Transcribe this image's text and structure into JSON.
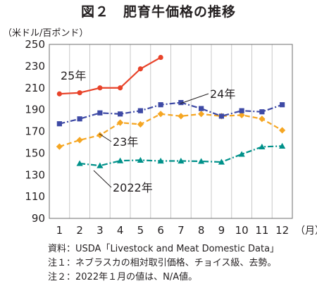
{
  "figure_title": "図２　肥育牛価格の推移",
  "notes": [
    "資料：USDA「Livestock and Meat Domestic Data」",
    "注１：ネブラスカの相対取引価格、チョイス級、去勢。",
    "注２：2022年１月の値は、N/A値。"
  ],
  "chart_data": {
    "type": "line",
    "title": "図２　肥育牛価格の推移",
    "ylabel": "（米ドル/百ポンド）",
    "xlabel": "（月）",
    "ylim": [
      90,
      250
    ],
    "y_ticks": [
      90,
      110,
      130,
      150,
      170,
      190,
      210,
      230,
      250
    ],
    "x": [
      "1",
      "2",
      "3",
      "4",
      "5",
      "6",
      "7",
      "8",
      "9",
      "10",
      "11",
      "12"
    ],
    "grid": "vertical",
    "series": [
      {
        "name": "2022年",
        "color": "#00918a",
        "marker": "triangle",
        "dash": "dash-dot",
        "values": [
          null,
          140.5,
          138.5,
          143.0,
          143.5,
          142.8,
          142.8,
          142.5,
          141.8,
          149.0,
          155.8,
          156.5
        ]
      },
      {
        "name": "23年",
        "color": "#f5a623",
        "marker": "diamond",
        "dash": "dash",
        "values": [
          156.0,
          162.0,
          166.5,
          178.0,
          176.5,
          186.0,
          184.0,
          186.0,
          184.0,
          185.0,
          181.5,
          171.0
        ]
      },
      {
        "name": "24年",
        "color": "#3e4aa5",
        "marker": "square",
        "dash": "dash-dot",
        "values": [
          177.0,
          181.5,
          187.0,
          186.0,
          189.0,
          194.5,
          196.5,
          191.0,
          184.0,
          189.0,
          188.0,
          194.5
        ]
      },
      {
        "name": "25年",
        "color": "#e8432a",
        "marker": "circle",
        "dash": "solid",
        "values": [
          204.5,
          205.5,
          210.0,
          210.0,
          227.5,
          238.0,
          null,
          null,
          null,
          null,
          null,
          null
        ]
      }
    ]
  }
}
